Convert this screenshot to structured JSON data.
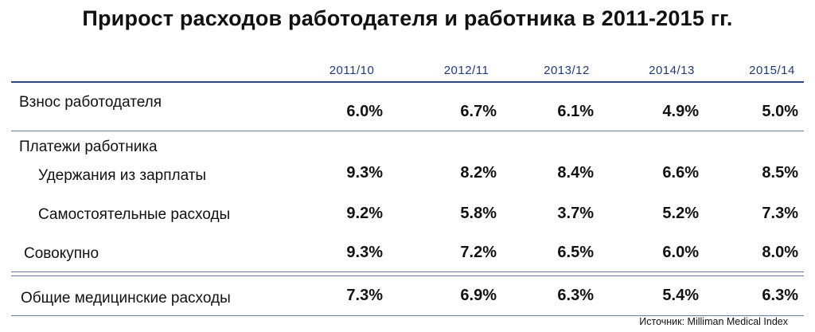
{
  "title": "Прирост расходов работодателя и работника в 2011-2015 гг.",
  "source": "Источник: Milliman Medical Index",
  "chart_data": {
    "type": "table",
    "title": "Прирост расходов работодателя и работника в 2011-2015 гг.",
    "columns": [
      "2011/10",
      "2012/11",
      "2013/12",
      "2014/13",
      "2015/14"
    ],
    "rows": [
      {
        "label": "Взнос работодателя",
        "values": [
          "6.0%",
          "6.7%",
          "6.1%",
          "4.9%",
          "5.0%"
        ]
      },
      {
        "label": "Платежи работника",
        "values": []
      },
      {
        "label": "Удержания из зарплаты",
        "values": [
          "9.3%",
          "8.2%",
          "8.4%",
          "6.6%",
          "8.5%"
        ]
      },
      {
        "label": "Самостоятельные расходы",
        "values": [
          "9.2%",
          "5.8%",
          "3.7%",
          "5.2%",
          "7.3%"
        ]
      },
      {
        "label": "Совокупно",
        "values": [
          "9.3%",
          "7.2%",
          "6.5%",
          "6.0%",
          "8.0%"
        ]
      },
      {
        "label": "Общие медицинские расходы",
        "values": [
          "7.3%",
          "6.9%",
          "6.3%",
          "5.4%",
          "6.3%"
        ]
      }
    ]
  }
}
